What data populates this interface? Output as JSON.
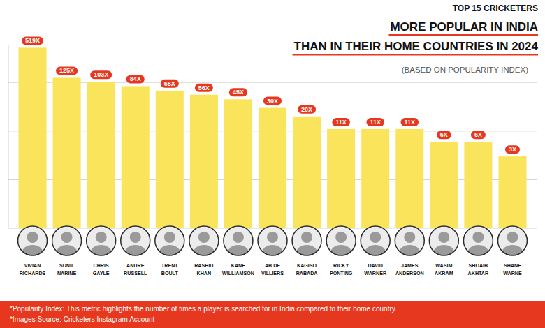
{
  "chart_data": {
    "type": "bar",
    "kicker": "TOP 15 CRICKETERS",
    "title": [
      "MORE POPULAR IN INDIA",
      "THAN IN THEIR HOME COUNTRIES IN 2024"
    ],
    "subtitle": "(BASED ON POPULARITY INDEX)",
    "categories": [
      "VIVIAN RICHARDS",
      "SUNIL NARINE",
      "CHRIS GAYLE",
      "ANDRE RUSSELL",
      "TRENT BOULT",
      "RASHID KHAN",
      "KANE WILLIAMSON",
      "AB DE VILLIERS",
      "KAGISO RABADA",
      "RICKY PONTING",
      "DAVID WARNER",
      "JAMES ANDERSON",
      "WASIM AKRAM",
      "SHOAIB AKHTAR",
      "SHANE WARNE"
    ],
    "values": [
      519,
      125,
      103,
      84,
      68,
      56,
      45,
      30,
      20,
      11,
      11,
      11,
      6,
      6,
      3
    ],
    "value_labels": [
      "519X",
      "125X",
      "103X",
      "84X",
      "68X",
      "56X",
      "45X",
      "30X",
      "20X",
      "11X",
      "11X",
      "11X",
      "6X",
      "6X",
      "3X"
    ],
    "data_labels": true,
    "color": "#f9e45b",
    "log": "y",
    "ylim": [
      0.1,
      600
    ],
    "yticks": [
      0.1,
      1,
      10,
      100
    ],
    "grid": true,
    "tick_labels": false,
    "footnotes": [
      "*Popularity Index: This metric highlights the number of times a player is searched for in India compared to their home country.",
      "*Images Source: Cricketers Instagram Account"
    ]
  }
}
